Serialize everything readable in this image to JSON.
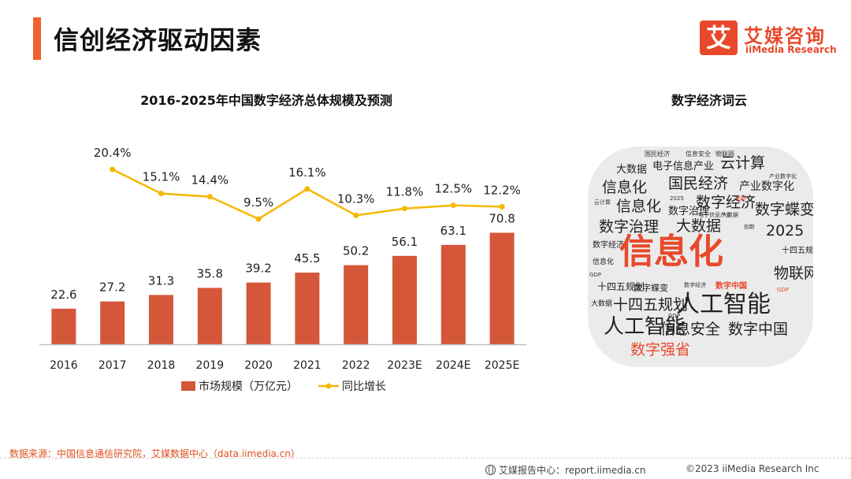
{
  "page_title": "信创经济驱动因素",
  "logo": {
    "mark": "艾",
    "name_cn": "艾媒咨询",
    "name_en": "iiMedia Research"
  },
  "colors": {
    "accent": "#f0622d",
    "bar": "#d4573a",
    "line": "#f5b800",
    "brand": "#e8492c"
  },
  "chart_data": {
    "type": "bar",
    "title": "2016-2025年中国数字经济总体规模及预测",
    "categories": [
      "2016",
      "2017",
      "2018",
      "2019",
      "2020",
      "2021",
      "2022",
      "2023E",
      "2024E",
      "2025E"
    ],
    "series": [
      {
        "name": "市场规模（万亿元）",
        "type": "bar",
        "values": [
          22.6,
          27.2,
          31.3,
          35.8,
          39.2,
          45.5,
          50.2,
          56.1,
          63.1,
          70.8
        ]
      },
      {
        "name": "同比增长",
        "type": "line",
        "values": [
          null,
          20.4,
          15.1,
          14.4,
          9.5,
          16.1,
          10.3,
          11.8,
          12.5,
          12.2
        ],
        "labels": [
          "",
          "20.4%",
          "15.1%",
          "14.4%",
          "9.5%",
          "16.1%",
          "10.3%",
          "11.8%",
          "12.5%",
          "12.2%"
        ]
      }
    ],
    "legend_position": "bottom",
    "grid": false
  },
  "word_cloud": {
    "title": "数字经济词云",
    "words": [
      "国民经济",
      "信息安全",
      "物联网",
      "大数据",
      "电子信息产业",
      "云计算",
      "产业数字化",
      "信息化",
      "国民经济",
      "产业数字化",
      "云计算",
      "信息化",
      "2025",
      "数字经济",
      "创新",
      "数字治理",
      "电子信息产业",
      "大数据",
      "数字蝶变",
      "数字治理",
      "大数据",
      "创新",
      "2025",
      "数字经济",
      "信息化",
      "信息化",
      "十四五规划",
      "GDP",
      "物联网",
      "十四五规划",
      "数字蝶变",
      "数字经济",
      "数字中国",
      "GDP",
      "大数据",
      "十四五规划",
      "人工智能",
      "GDP",
      "人工智能",
      "信息安全",
      "数字中国",
      "数字强省"
    ]
  },
  "source": "数据来源：中国信息通信研究院，艾媒数据中心（data.iimedia.cn）",
  "footer": {
    "left": "艾媒报告中心：report.iimedia.cn",
    "right": "©2023  iiMedia Research  Inc"
  }
}
